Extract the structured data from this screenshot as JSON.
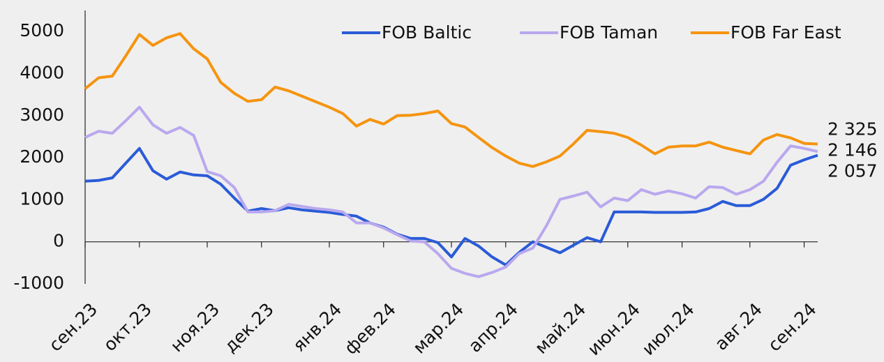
{
  "chart_data": {
    "type": "line",
    "categories": [
      "сен.23",
      null,
      null,
      null,
      "окт.23",
      null,
      null,
      null,
      null,
      "ноя.23",
      null,
      null,
      null,
      "дек.23",
      null,
      null,
      null,
      null,
      "янв.24",
      null,
      null,
      null,
      "фев.24",
      null,
      null,
      null,
      null,
      "мар.24",
      null,
      null,
      null,
      "апр.24",
      null,
      null,
      null,
      null,
      "май.24",
      null,
      null,
      null,
      "июн.24",
      null,
      null,
      null,
      "июл.24",
      null,
      null,
      null,
      null,
      "авг.24",
      null,
      null,
      null,
      "сен.24",
      null
    ],
    "series": [
      {
        "name": "FOB Baltic",
        "color": "#2a5bd7",
        "values": [
          1440,
          1460,
          1520,
          1870,
          2220,
          1690,
          1490,
          1660,
          1590,
          1570,
          1370,
          1040,
          730,
          790,
          740,
          810,
          760,
          730,
          700,
          650,
          610,
          450,
          350,
          180,
          80,
          80,
          -20,
          -360,
          80,
          -100,
          -360,
          -550,
          -250,
          0,
          -130,
          -260,
          -80,
          100,
          0,
          710,
          710,
          710,
          700,
          700,
          700,
          710,
          790,
          960,
          860,
          860,
          1010,
          1270,
          1820,
          1950,
          2057
        ],
        "value_labels": [
          null,
          null,
          null,
          null,
          null,
          null,
          null,
          null,
          null,
          null,
          null,
          null,
          null,
          null,
          null,
          null,
          null,
          null,
          null,
          null,
          null,
          null,
          null,
          null,
          null,
          null,
          null,
          null,
          null,
          null,
          null,
          null,
          null,
          null,
          null,
          null,
          null,
          null,
          null,
          null,
          null,
          null,
          null,
          null,
          null,
          null,
          null,
          null,
          null,
          null,
          null,
          null,
          null,
          null,
          "2 057"
        ]
      },
      {
        "name": "FOB Taman",
        "color": "#b9a8ee",
        "values": [
          2480,
          2630,
          2580,
          2880,
          3200,
          2780,
          2580,
          2720,
          2530,
          1670,
          1570,
          1290,
          710,
          710,
          740,
          890,
          840,
          790,
          760,
          710,
          450,
          450,
          330,
          170,
          20,
          0,
          -280,
          -630,
          -750,
          -830,
          -730,
          -600,
          -280,
          -150,
          380,
          1010,
          1090,
          1180,
          830,
          1040,
          980,
          1240,
          1130,
          1210,
          1140,
          1040,
          1310,
          1290,
          1130,
          1240,
          1440,
          1890,
          2280,
          2220,
          2146
        ],
        "value_labels": [
          null,
          null,
          null,
          null,
          null,
          null,
          null,
          null,
          null,
          null,
          null,
          null,
          null,
          null,
          null,
          null,
          null,
          null,
          null,
          null,
          null,
          null,
          null,
          null,
          null,
          null,
          null,
          null,
          null,
          null,
          null,
          null,
          null,
          null,
          null,
          null,
          null,
          null,
          null,
          null,
          null,
          null,
          null,
          null,
          null,
          null,
          null,
          null,
          null,
          null,
          null,
          null,
          null,
          null,
          "2 146"
        ]
      },
      {
        "name": "FOB Far East",
        "color": "#f5940f",
        "values": [
          3640,
          3900,
          3940,
          4420,
          4930,
          4670,
          4850,
          4950,
          4590,
          4350,
          3790,
          3530,
          3340,
          3380,
          3680,
          3590,
          3460,
          3330,
          3200,
          3050,
          2750,
          2910,
          2800,
          3000,
          3010,
          3050,
          3110,
          2810,
          2730,
          2480,
          2240,
          2040,
          1870,
          1790,
          1900,
          2040,
          2330,
          2650,
          2620,
          2580,
          2480,
          2300,
          2090,
          2250,
          2280,
          2280,
          2370,
          2250,
          2170,
          2090,
          2420,
          2550,
          2470,
          2340,
          2325
        ],
        "value_labels": [
          null,
          null,
          null,
          null,
          null,
          null,
          null,
          null,
          null,
          null,
          null,
          null,
          null,
          null,
          null,
          null,
          null,
          null,
          null,
          null,
          null,
          null,
          null,
          null,
          null,
          null,
          null,
          null,
          null,
          null,
          null,
          null,
          null,
          null,
          null,
          null,
          null,
          null,
          null,
          null,
          null,
          null,
          null,
          null,
          null,
          null,
          null,
          null,
          null,
          null,
          null,
          null,
          null,
          null,
          "2 325"
        ]
      }
    ],
    "ylim": [
      -1000,
      5500
    ],
    "yticks": [
      -1000,
      0,
      1000,
      2000,
      3000,
      4000,
      5000
    ],
    "grid": false,
    "legend": "upper right"
  }
}
